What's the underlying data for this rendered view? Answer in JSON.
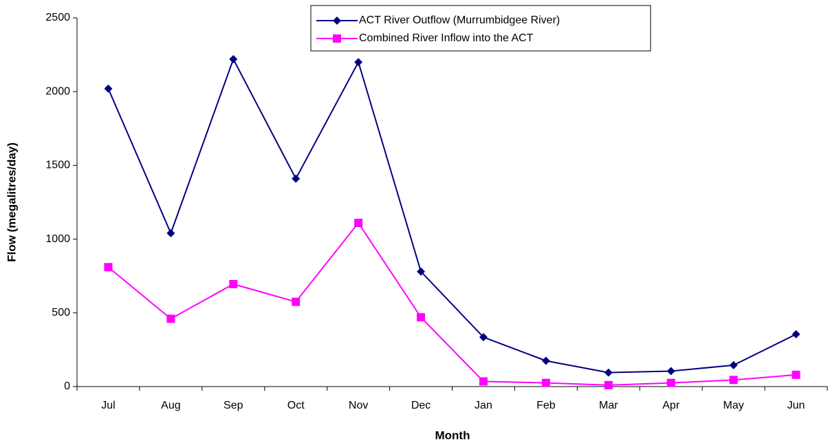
{
  "chart_data": {
    "type": "line",
    "categories": [
      "Jul",
      "Aug",
      "Sep",
      "Oct",
      "Nov",
      "Dec",
      "Jan",
      "Feb",
      "Mar",
      "Apr",
      "May",
      "Jun"
    ],
    "series": [
      {
        "name": "ACT River Outflow (Murrumbidgee River)",
        "color": "#000080",
        "marker": "diamond",
        "values": [
          2020,
          1040,
          2220,
          1410,
          2200,
          780,
          335,
          175,
          95,
          105,
          145,
          355
        ]
      },
      {
        "name": "Combined River Inflow into the ACT",
        "color": "#ff00ff",
        "marker": "square",
        "values": [
          810,
          460,
          695,
          575,
          1110,
          470,
          35,
          25,
          10,
          25,
          45,
          80
        ]
      }
    ],
    "ylim": [
      0,
      2500
    ],
    "yticks": [
      0,
      500,
      1000,
      1500,
      2000,
      2500
    ],
    "xlabel": "Month",
    "ylabel": "Flow (megalitres/day)",
    "grid": false,
    "legend": "top"
  }
}
